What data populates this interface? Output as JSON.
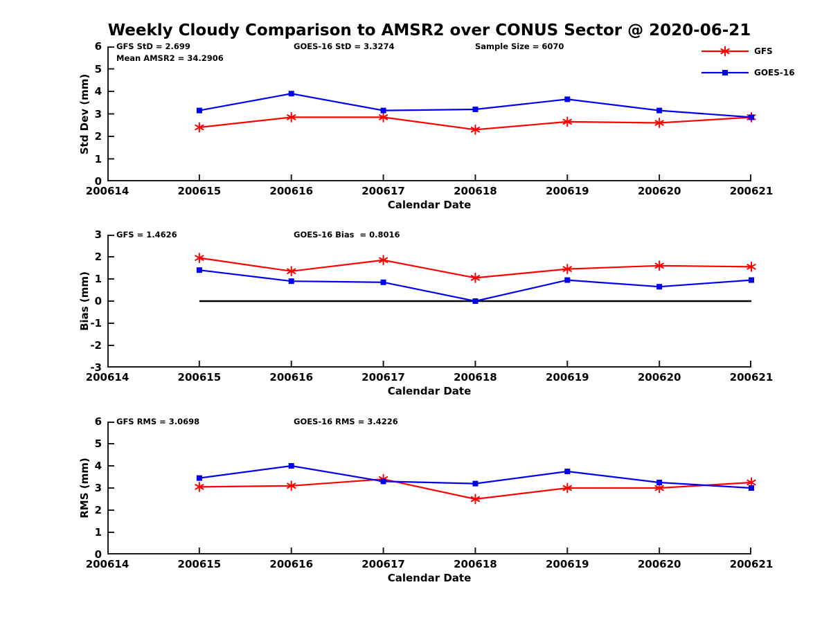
{
  "title": "Weekly Cloudy Comparison to AMSR2 over CONUS Sector @ 2020-06-21",
  "x_axis": {
    "label": "Calendar Date",
    "ticks": [
      "200614",
      "200615",
      "200616",
      "200617",
      "200618",
      "200619",
      "200620",
      "200621"
    ]
  },
  "legend": {
    "items": [
      {
        "label": "GFS",
        "color": "#ff0000",
        "marker": "asterisk"
      },
      {
        "label": "GOES-16",
        "color": "#0000ee",
        "marker": "square"
      }
    ]
  },
  "colors": {
    "gfs": "#ff0000",
    "goes16": "#0000ee",
    "axis": "#1a1a1a",
    "zero_line": "#000000",
    "background": "#ffffff"
  },
  "chart_data": [
    {
      "type": "line",
      "ylabel": "Std Dev (mm)",
      "ylim": [
        0,
        6
      ],
      "yticks": [
        0,
        1,
        2,
        3,
        4,
        5,
        6
      ],
      "x": [
        "200615",
        "200616",
        "200617",
        "200618",
        "200619",
        "200620",
        "200621"
      ],
      "series": [
        {
          "name": "GFS",
          "color": "#ff0000",
          "marker": "asterisk",
          "values": [
            2.4,
            2.85,
            2.85,
            2.3,
            2.65,
            2.6,
            2.85
          ]
        },
        {
          "name": "GOES-16",
          "color": "#0000ee",
          "marker": "square",
          "values": [
            3.15,
            3.9,
            3.15,
            3.2,
            3.65,
            3.15,
            2.85
          ]
        }
      ],
      "annotations": {
        "left1": "GFS StD = 2.699",
        "left2": "Mean AMSR2 = 34.2906",
        "mid": "GOES-16 StD = 3.3274",
        "right": "Sample Size = 6070"
      }
    },
    {
      "type": "line",
      "ylabel": "Bias (mm)",
      "ylim": [
        -3,
        3
      ],
      "yticks": [
        -3,
        -2,
        -1,
        0,
        1,
        2,
        3
      ],
      "zero_line": true,
      "x": [
        "200615",
        "200616",
        "200617",
        "200618",
        "200619",
        "200620",
        "200621"
      ],
      "series": [
        {
          "name": "GFS",
          "color": "#ff0000",
          "marker": "asterisk",
          "values": [
            1.95,
            1.35,
            1.85,
            1.05,
            1.45,
            1.6,
            1.55
          ]
        },
        {
          "name": "GOES-16",
          "color": "#0000ee",
          "marker": "square",
          "values": [
            1.4,
            0.9,
            0.85,
            0.0,
            0.95,
            0.65,
            0.95
          ]
        }
      ],
      "annotations": {
        "left1": "GFS = 1.4626",
        "mid": "GOES-16 Bias  = 0.8016"
      }
    },
    {
      "type": "line",
      "ylabel": "RMS (mm)",
      "ylim": [
        0,
        6
      ],
      "yticks": [
        0,
        1,
        2,
        3,
        4,
        5,
        6
      ],
      "x": [
        "200615",
        "200616",
        "200617",
        "200618",
        "200619",
        "200620",
        "200621"
      ],
      "series": [
        {
          "name": "GFS",
          "color": "#ff0000",
          "marker": "asterisk",
          "values": [
            3.05,
            3.1,
            3.4,
            2.5,
            3.0,
            3.0,
            3.25
          ]
        },
        {
          "name": "GOES-16",
          "color": "#0000ee",
          "marker": "square",
          "values": [
            3.45,
            4.0,
            3.3,
            3.2,
            3.75,
            3.25,
            3.0
          ]
        }
      ],
      "annotations": {
        "left1": "GFS RMS = 3.0698",
        "mid": "GOES-16 RMS = 3.4226"
      }
    }
  ]
}
